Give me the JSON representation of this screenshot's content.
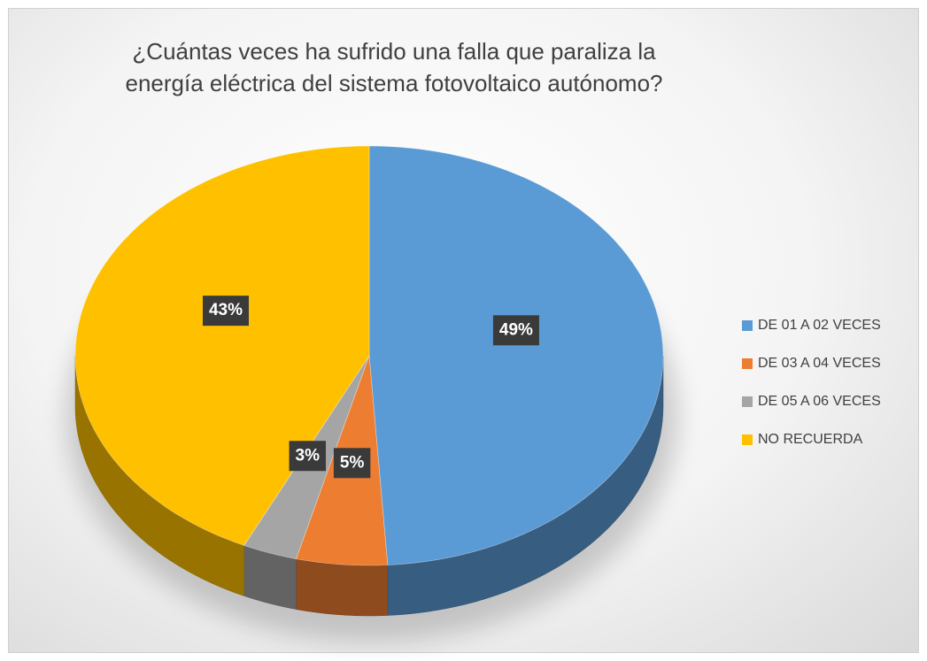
{
  "chart_data": {
    "type": "pie",
    "title": "¿Cuántas veces ha sufrido una falla que paraliza la energía eléctrica del sistema fotovoltaico autónomo?",
    "categories": [
      "DE 01 A 02 VECES",
      "DE 03 A 04 VECES",
      "DE 05 A 06 VECES",
      "NO RECUERDA"
    ],
    "values": [
      49,
      5,
      3,
      43
    ],
    "value_labels": [
      "49%",
      "5%",
      "3%",
      "43%"
    ],
    "colors": [
      "#5b9bd5",
      "#ed7d31",
      "#a5a5a5",
      "#ffc000"
    ],
    "legend": "right"
  }
}
